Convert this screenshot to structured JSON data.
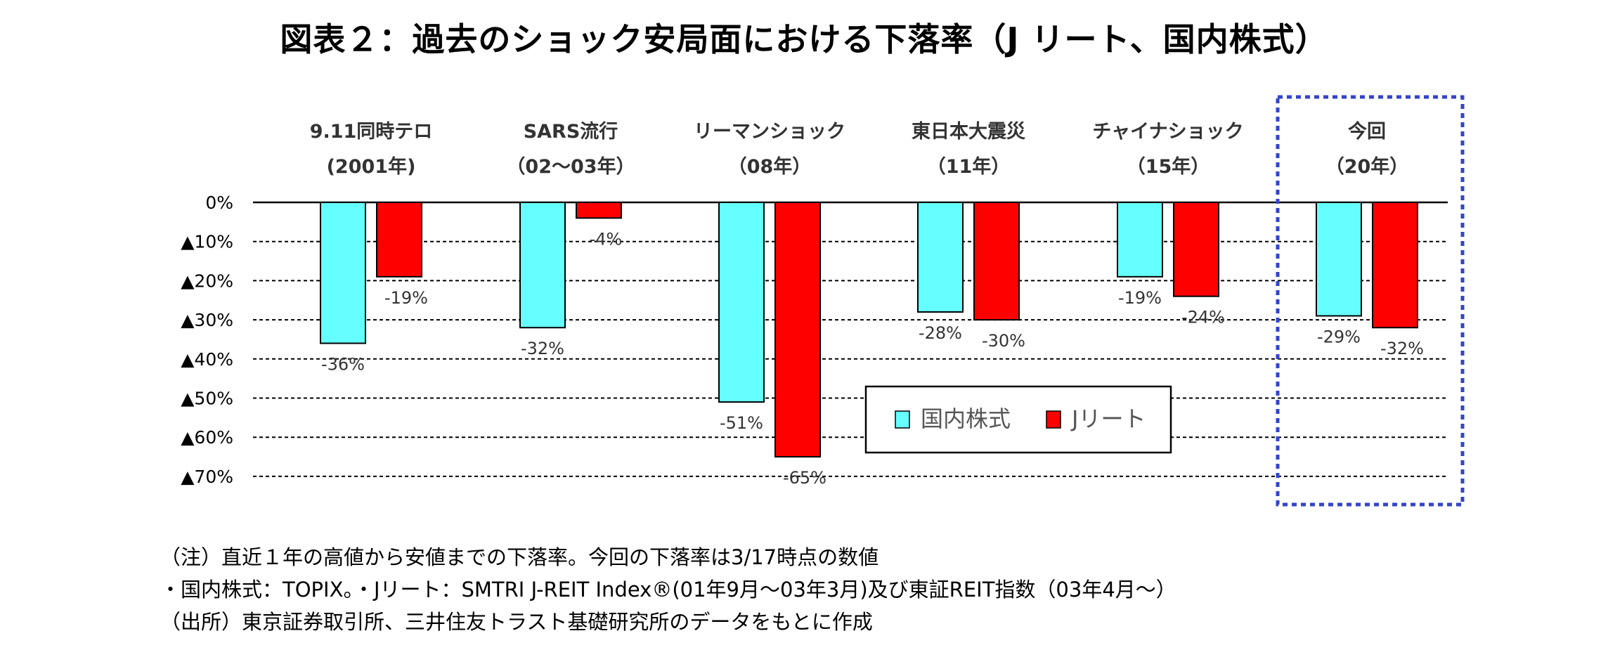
{
  "title": "図表２：過去のショック安局面における下落率（J リート、国内株式）",
  "chart_data": {
    "type": "bar",
    "categories": [
      {
        "name": "9.11同時テロ",
        "period": "(2001年)"
      },
      {
        "name": "SARS流行",
        "period": "（02～03年）"
      },
      {
        "name": "リーマンショック",
        "period": "（08年）"
      },
      {
        "name": "東日本大震災",
        "period": "（11年）"
      },
      {
        "name": "チャイナショック",
        "period": "（15年）"
      },
      {
        "name": "今回",
        "period": "（20年）"
      }
    ],
    "series": [
      {
        "name": "国内株式",
        "color": "#66ffff",
        "values": [
          -36,
          -32,
          -51,
          -28,
          -19,
          -29
        ],
        "labels": [
          "-36%",
          "-32%",
          "-51%",
          "-28%",
          "-19%",
          "-29%"
        ]
      },
      {
        "name": "Jリート",
        "color": "#ff0000",
        "values": [
          -19,
          -4,
          -65,
          -30,
          -24,
          -32
        ],
        "labels": [
          "-19%",
          "-4%",
          "-65%",
          "-30%",
          "-24%",
          "-32%"
        ]
      }
    ],
    "y_ticks": [
      {
        "value": 0,
        "label": "0%"
      },
      {
        "value": -10,
        "label": "▲10%"
      },
      {
        "value": -20,
        "label": "▲20%"
      },
      {
        "value": -30,
        "label": "▲30%"
      },
      {
        "value": -40,
        "label": "▲40%"
      },
      {
        "value": -50,
        "label": "▲50%"
      },
      {
        "value": -60,
        "label": "▲60%"
      },
      {
        "value": -70,
        "label": "▲70%"
      }
    ],
    "ylim": [
      -70,
      0
    ],
    "grid": "dashed",
    "legend_position": "lower-center",
    "highlight_category_index": 5,
    "highlight_color": "#3344cc"
  },
  "notes": [
    "（注）直近１年の高値から安値までの下落率。今回の下落率は3/17時点の数値",
    "・国内株式：TOPIX。・Jリート：SMTRI J-REIT Index®(01年9月～03年3月)及び東証REIT指数（03年4月～）",
    "（出所）東京証券取引所、三井住友トラスト基礎研究所のデータをもとに作成"
  ]
}
